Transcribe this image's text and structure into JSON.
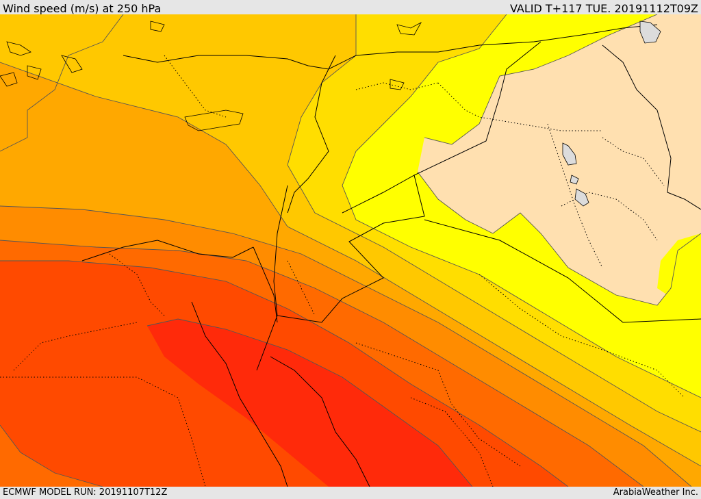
{
  "header": {
    "title": "Wind speed (m/s) at 250 hPa",
    "valid_time": "VALID T+117 TUE. 20191112T09Z"
  },
  "footer": {
    "model_run": "ECMWF MODEL RUN: 20191107T12Z",
    "credit": "ArabiaWeather Inc."
  },
  "colors": {
    "band_peach": "#ffe0b0",
    "band_yellow": "#ffff00",
    "band_gold": "#ffde00",
    "band_amber": "#ffc800",
    "band_orange_light": "#ffa800",
    "band_orange": "#ff8c00",
    "band_orange_dark": "#ff6a00",
    "band_red_orange": "#ff4a00",
    "band_red": "#ff2a0a",
    "water": "#dcdcdc",
    "contour": "#555555",
    "border": "#000000"
  }
}
